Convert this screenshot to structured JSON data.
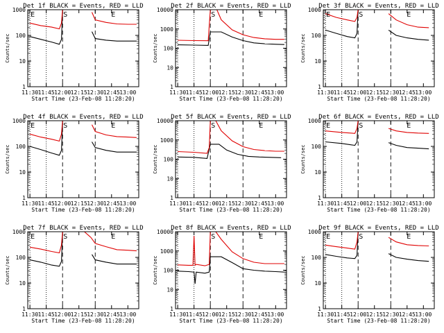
{
  "figure": {
    "background": "#ffffff",
    "black_color": "#000000",
    "red_color": "#e00000",
    "xlabel": "Start Time (23-Feb-08 11:28:20)",
    "ylabel": "Counts/sec",
    "x_tick_labels": [
      "11:30",
      "11:45",
      "12:00",
      "12:15",
      "12:30",
      "12:45",
      "13:00"
    ],
    "y_tick_labels": [
      "1",
      "10",
      "100",
      "1000"
    ],
    "y_tick_labels_10k": [
      "1",
      "10",
      "100",
      "1000",
      "10000"
    ]
  },
  "chart_data": [
    {
      "type": "line",
      "title": "Det 1f BLACK = Events, RED = LLD",
      "yscale": "log",
      "xlim": [
        "11:28",
        "13:10"
      ],
      "ylim": [
        1,
        1000
      ],
      "markers": [
        {
          "label": "E",
          "x": "11:30"
        },
        {
          "label": "S",
          "x": "12:00"
        },
        {
          "label": "E",
          "x": "12:44"
        }
      ],
      "series": [
        {
          "name": "Events",
          "color": "black",
          "x": [
            "11:30",
            "11:40",
            "11:50",
            "11:57",
            "11:59",
            "12:00",
            "12:26",
            "12:27",
            "12:30",
            "12:40",
            "12:50",
            "13:00",
            "13:08"
          ],
          "values": [
            90,
            70,
            55,
            45,
            70,
            900,
            null,
            140,
            75,
            65,
            60,
            60,
            60
          ]
        },
        {
          "name": "LLD",
          "color": "red",
          "x": [
            "11:30",
            "11:40",
            "11:50",
            "11:57",
            "11:59",
            "12:00",
            "12:26",
            "12:27",
            "12:30",
            "12:40",
            "12:50",
            "13:00",
            "13:08"
          ],
          "values": [
            300,
            240,
            210,
            180,
            300,
            1000,
            null,
            800,
            400,
            320,
            280,
            270,
            270
          ]
        }
      ]
    },
    {
      "type": "line",
      "title": "Det 2f BLACK = Events, RED = LLD",
      "yscale": "log",
      "xlim": [
        "11:28",
        "13:10"
      ],
      "ylim": [
        1,
        10000
      ],
      "markers": [
        {
          "label": "S",
          "x": "12:00"
        },
        {
          "label": "E",
          "x": "12:44"
        }
      ],
      "series": [
        {
          "name": "Events",
          "color": "black",
          "x": [
            "11:30",
            "11:45",
            "11:58",
            "12:00",
            "12:10",
            "12:20",
            "12:30",
            "12:40",
            "12:50",
            "13:00",
            "13:08"
          ],
          "values": [
            150,
            145,
            140,
            700,
            700,
            380,
            250,
            190,
            170,
            160,
            155
          ]
        },
        {
          "name": "LLD",
          "color": "red",
          "x": [
            "11:30",
            "11:45",
            "11:58",
            "12:00",
            "12:06",
            "12:10",
            "12:20",
            "12:30",
            "12:40",
            "12:50",
            "13:00",
            "13:08"
          ],
          "values": [
            260,
            250,
            245,
            10000,
            10000,
            3000,
            900,
            500,
            360,
            310,
            290,
            290
          ]
        }
      ]
    },
    {
      "type": "line",
      "title": "Det 3f BLACK = Events, RED = LLD",
      "yscale": "log",
      "xlim": [
        "11:28",
        "13:10"
      ],
      "ylim": [
        1,
        1000
      ],
      "markers": [
        {
          "label": "E",
          "x": "11:30"
        },
        {
          "label": "S",
          "x": "12:00"
        },
        {
          "label": "E",
          "x": "12:44"
        }
      ],
      "series": [
        {
          "name": "Events",
          "color": "black",
          "x": [
            "11:30",
            "11:40",
            "11:50",
            "11:57",
            "11:59",
            "12:00",
            "12:26",
            "12:28",
            "12:35",
            "12:45",
            "12:55",
            "13:05"
          ],
          "values": [
            160,
            120,
            90,
            80,
            120,
            1000,
            null,
            160,
            100,
            80,
            70,
            65
          ]
        },
        {
          "name": "LLD",
          "color": "red",
          "x": [
            "11:30",
            "11:40",
            "11:50",
            "11:57",
            "11:59",
            "12:00",
            "12:26",
            "12:28",
            "12:35",
            "12:45",
            "12:55",
            "13:05"
          ],
          "values": [
            700,
            500,
            400,
            350,
            500,
            1000,
            null,
            700,
            400,
            260,
            210,
            200
          ]
        }
      ]
    },
    {
      "type": "line",
      "title": "Det 4f BLACK = Events, RED = LLD",
      "yscale": "log",
      "xlim": [
        "11:28",
        "13:10"
      ],
      "ylim": [
        1,
        1000
      ],
      "markers": [
        {
          "label": "E",
          "x": "11:30"
        },
        {
          "label": "S",
          "x": "12:00"
        },
        {
          "label": "E",
          "x": "12:44"
        }
      ],
      "series": [
        {
          "name": "Events",
          "color": "black",
          "x": [
            "11:30",
            "11:40",
            "11:50",
            "11:57",
            "11:59",
            "12:00",
            "12:26",
            "12:27",
            "12:30",
            "12:40",
            "12:50",
            "13:00",
            "13:08"
          ],
          "values": [
            100,
            75,
            55,
            45,
            70,
            800,
            null,
            150,
            90,
            70,
            60,
            60,
            60
          ]
        },
        {
          "name": "LLD",
          "color": "red",
          "x": [
            "11:30",
            "11:40",
            "11:50",
            "11:57",
            "11:59",
            "12:00",
            "12:26",
            "12:27",
            "12:30",
            "12:40",
            "12:50",
            "13:00",
            "13:08"
          ],
          "values": [
            300,
            230,
            190,
            160,
            300,
            1000,
            null,
            700,
            380,
            280,
            240,
            230,
            220
          ]
        }
      ]
    },
    {
      "type": "line",
      "title": "Det 5f BLACK = Events, RED = LLD",
      "yscale": "log",
      "xlim": [
        "11:28",
        "13:10"
      ],
      "ylim": [
        1,
        10000
      ],
      "markers": [
        {
          "label": "S",
          "x": "12:00"
        },
        {
          "label": "E",
          "x": "12:44"
        }
      ],
      "series": [
        {
          "name": "Events",
          "color": "black",
          "x": [
            "11:30",
            "11:45",
            "11:57",
            "12:00",
            "12:08",
            "12:15",
            "12:25",
            "12:35",
            "12:45",
            "12:55",
            "13:05"
          ],
          "values": [
            130,
            125,
            110,
            600,
            600,
            300,
            180,
            140,
            130,
            125,
            120
          ]
        },
        {
          "name": "LLD",
          "color": "red",
          "x": [
            "11:30",
            "11:45",
            "11:57",
            "11:59",
            "12:00",
            "12:05",
            "12:10",
            "12:20",
            "12:30",
            "12:40",
            "12:50",
            "13:00",
            "13:08"
          ],
          "values": [
            250,
            230,
            200,
            400,
            10000,
            10000,
            3000,
            900,
            450,
            320,
            280,
            260,
            260
          ]
        }
      ]
    },
    {
      "type": "line",
      "title": "Det 6f BLACK = Events, RED = LLD",
      "yscale": "log",
      "xlim": [
        "11:28",
        "13:10"
      ],
      "ylim": [
        1,
        1000
      ],
      "markers": [
        {
          "label": "E",
          "x": "11:30"
        },
        {
          "label": "S",
          "x": "12:00"
        },
        {
          "label": "E",
          "x": "12:44"
        }
      ],
      "series": [
        {
          "name": "Events",
          "color": "black",
          "x": [
            "11:30",
            "11:45",
            "11:57",
            "11:59",
            "12:00",
            "12:26",
            "12:28",
            "12:35",
            "12:45",
            "12:55",
            "13:05"
          ],
          "values": [
            150,
            130,
            110,
            150,
            1000,
            null,
            140,
            110,
            90,
            85,
            80
          ]
        },
        {
          "name": "LLD",
          "color": "red",
          "x": [
            "11:30",
            "11:45",
            "11:57",
            "11:59",
            "12:00",
            "12:26",
            "12:28",
            "12:35",
            "12:45",
            "12:55",
            "13:05"
          ],
          "values": [
            400,
            350,
            320,
            500,
            1000,
            null,
            500,
            400,
            350,
            330,
            320
          ]
        }
      ]
    },
    {
      "type": "line",
      "title": "Det 7f BLACK = Events, RED = LLD",
      "yscale": "log",
      "xlim": [
        "11:28",
        "13:10"
      ],
      "ylim": [
        1,
        1000
      ],
      "markers": [
        {
          "label": "E",
          "x": "11:30"
        },
        {
          "label": "S",
          "x": "12:00"
        },
        {
          "label": "E",
          "x": "12:44"
        }
      ],
      "series": [
        {
          "name": "Events",
          "color": "black",
          "x": [
            "11:30",
            "11:40",
            "11:50",
            "11:57",
            "11:59",
            "12:00",
            "12:26",
            "12:27",
            "12:30",
            "12:40",
            "12:50",
            "13:00",
            "13:08"
          ],
          "values": [
            80,
            65,
            50,
            45,
            70,
            900,
            null,
            130,
            80,
            65,
            55,
            55,
            55
          ]
        },
        {
          "name": "LLD",
          "color": "red",
          "x": [
            "11:30",
            "11:40",
            "11:50",
            "11:57",
            "11:59",
            "12:00",
            "12:20",
            "12:26",
            "12:30",
            "12:40",
            "12:50",
            "13:00",
            "13:08"
          ],
          "values": [
            250,
            210,
            170,
            150,
            300,
            1000,
            1000,
            600,
            350,
            260,
            200,
            190,
            180
          ]
        }
      ]
    },
    {
      "type": "line",
      "title": "Det 8f BLACK = Events, RED = LLD",
      "yscale": "log",
      "xlim": [
        "11:28",
        "13:10"
      ],
      "ylim": [
        1,
        10000
      ],
      "markers": [
        {
          "label": "S",
          "x": "12:00"
        },
        {
          "label": "E",
          "x": "12:44"
        }
      ],
      "series": [
        {
          "name": "Events",
          "color": "black",
          "x": [
            "11:30",
            "11:40",
            "11:45",
            "11:46",
            "11:47",
            "11:55",
            "11:59",
            "12:00",
            "12:10",
            "12:20",
            "12:30",
            "12:40",
            "12:50",
            "13:00",
            "13:08"
          ],
          "values": [
            90,
            85,
            80,
            20,
            80,
            70,
            80,
            500,
            500,
            250,
            120,
            100,
            90,
            85,
            80
          ]
        },
        {
          "name": "LLD",
          "color": "red",
          "x": [
            "11:30",
            "11:40",
            "11:44",
            "11:45",
            "11:46",
            "11:47",
            "11:55",
            "11:59",
            "12:00",
            "12:05",
            "12:10",
            "12:20",
            "12:30",
            "12:40",
            "12:50",
            "13:00",
            "13:08"
          ],
          "values": [
            190,
            180,
            180,
            6000,
            180,
            200,
            170,
            200,
            10000,
            10000,
            4000,
            900,
            400,
            260,
            220,
            220,
            220
          ]
        }
      ]
    },
    {
      "type": "line",
      "title": "Det 9f BLACK = Events, RED = LLD",
      "yscale": "log",
      "xlim": [
        "11:28",
        "13:10"
      ],
      "ylim": [
        1,
        1000
      ],
      "markers": [
        {
          "label": "E",
          "x": "11:30"
        },
        {
          "label": "S",
          "x": "12:00"
        },
        {
          "label": "E",
          "x": "12:44"
        }
      ],
      "series": [
        {
          "name": "Events",
          "color": "black",
          "x": [
            "11:30",
            "11:40",
            "11:50",
            "11:57",
            "11:59",
            "12:00",
            "12:26",
            "12:28",
            "12:35",
            "12:45",
            "12:55",
            "13:05"
          ],
          "values": [
            130,
            110,
            95,
            90,
            120,
            1000,
            null,
            140,
            100,
            85,
            75,
            70
          ]
        },
        {
          "name": "LLD",
          "color": "red",
          "x": [
            "11:30",
            "11:40",
            "11:50",
            "11:57",
            "11:59",
            "12:00",
            "12:26",
            "12:28",
            "12:35",
            "12:45",
            "12:55",
            "13:05"
          ],
          "values": [
            300,
            260,
            230,
            210,
            400,
            1000,
            null,
            600,
            400,
            310,
            290,
            280
          ]
        }
      ]
    }
  ]
}
